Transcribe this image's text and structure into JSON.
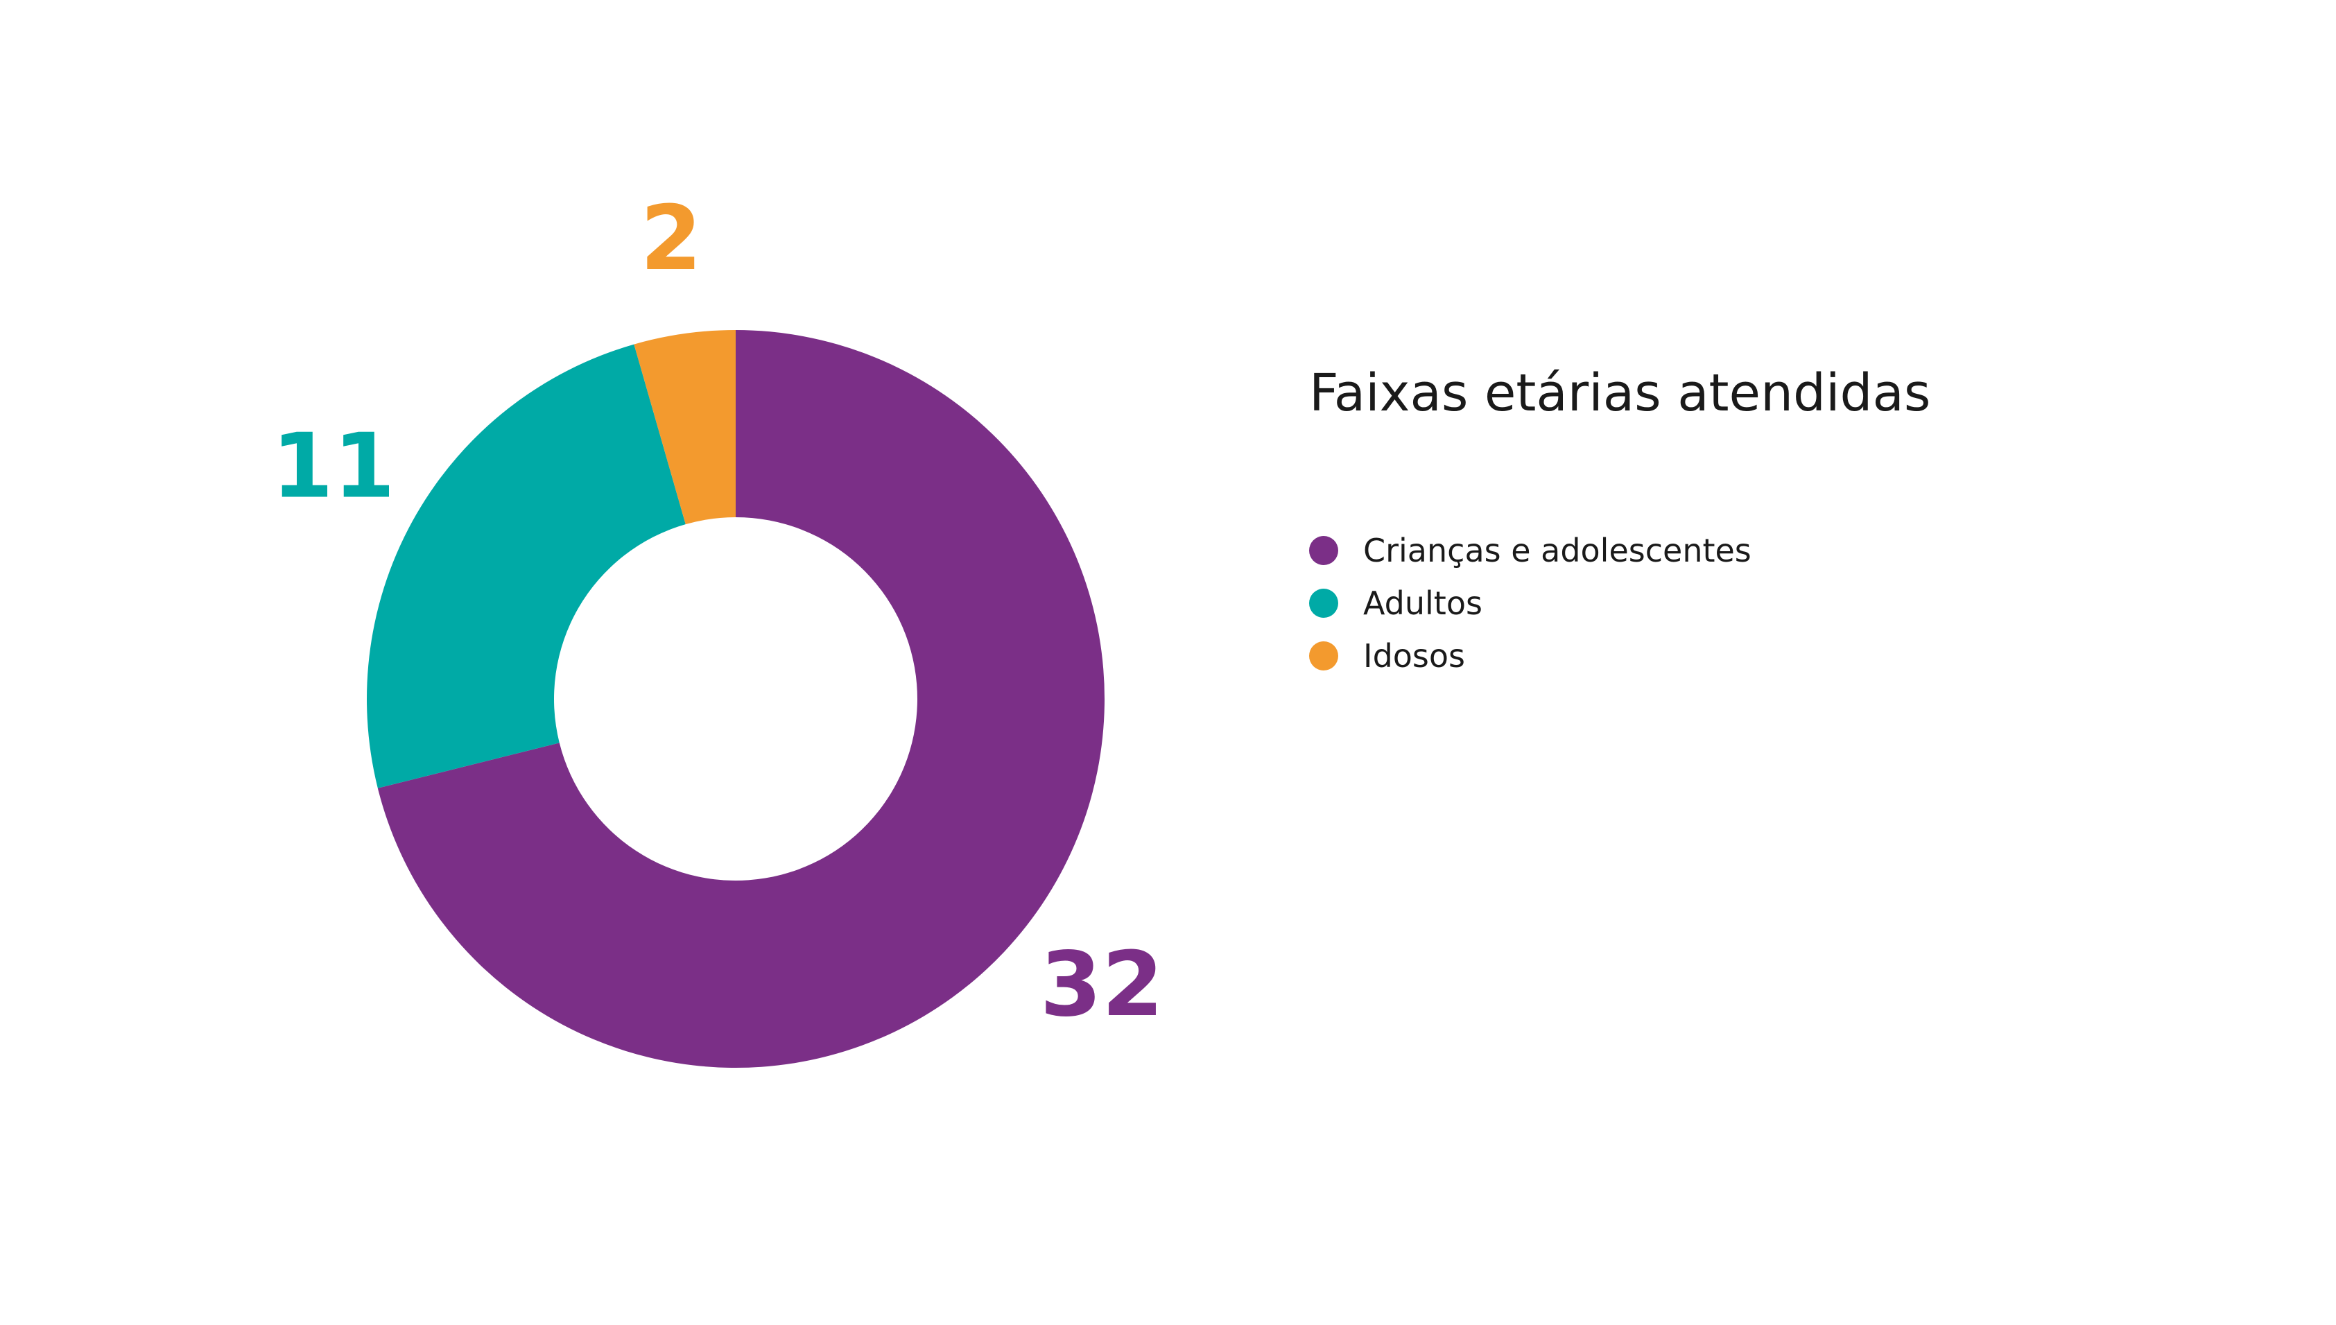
{
  "chart_data": {
    "type": "pie",
    "title": "Faixas etárias atendidas",
    "donut": true,
    "legend_position": "right",
    "categories": [
      "Crianças e adolescentes",
      "Adultos",
      "Idosos"
    ],
    "values": [
      32,
      11,
      2
    ],
    "colors": [
      "#7b2f87",
      "#00aaa6",
      "#f39a2e"
    ],
    "data_labels": [
      "32",
      "11",
      "2"
    ]
  }
}
